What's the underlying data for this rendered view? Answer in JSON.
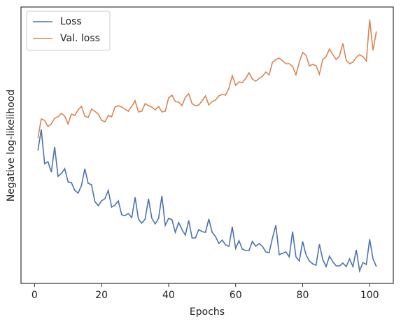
{
  "chart_data": {
    "type": "line",
    "x_label": "Epochs",
    "y_label": "Negative log-likelihood",
    "x": [
      1,
      2,
      3,
      4,
      5,
      6,
      7,
      8,
      9,
      10,
      11,
      12,
      13,
      14,
      15,
      16,
      17,
      18,
      19,
      20,
      21,
      22,
      23,
      24,
      25,
      26,
      27,
      28,
      29,
      30,
      31,
      32,
      33,
      34,
      35,
      36,
      37,
      38,
      39,
      40,
      41,
      42,
      43,
      44,
      45,
      46,
      47,
      48,
      49,
      50,
      51,
      52,
      53,
      54,
      55,
      56,
      57,
      58,
      59,
      60,
      61,
      62,
      63,
      64,
      65,
      66,
      67,
      68,
      69,
      70,
      71,
      72,
      73,
      74,
      75,
      76,
      77,
      78,
      79,
      80,
      81,
      82,
      83,
      84,
      85,
      86,
      87,
      88,
      89,
      90,
      91,
      92,
      93,
      94,
      95,
      96,
      97,
      98,
      99,
      100,
      101,
      102
    ],
    "series": [
      {
        "name": "Loss",
        "color": "#4c72b0",
        "values": [
          190,
          220,
          171,
          174,
          159,
          195,
          153,
          157,
          164,
          145,
          144,
          133,
          129,
          140,
          164,
          143,
          141,
          117,
          111,
          118,
          121,
          133,
          109,
          112,
          118,
          98,
          97,
          100,
          94,
          123,
          92,
          86,
          92,
          121,
          93,
          85,
          93,
          125,
          83,
          93,
          91,
          73,
          87,
          77,
          69,
          90,
          65,
          65,
          77,
          74,
          73,
          92,
          73,
          67,
          57,
          62,
          55,
          53,
          81,
          50,
          61,
          49,
          47,
          47,
          60,
          53,
          57,
          53,
          45,
          44,
          65,
          83,
          41,
          43,
          45,
          38,
          74,
          38,
          32,
          60,
          41,
          32,
          28,
          26,
          56,
          34,
          24,
          39,
          31,
          25,
          25,
          29,
          24,
          35,
          24,
          48,
          18,
          30,
          27,
          63,
          35,
          24
        ]
      },
      {
        "name": "Val. loss",
        "color": "#dd8452",
        "values": [
          208,
          235,
          233,
          224,
          228,
          236,
          238,
          243,
          239,
          228,
          242,
          240,
          248,
          253,
          239,
          237,
          249,
          246,
          242,
          233,
          231,
          240,
          238,
          252,
          254,
          252,
          249,
          246,
          253,
          261,
          245,
          246,
          257,
          254,
          252,
          248,
          253,
          245,
          246,
          265,
          269,
          260,
          259,
          254,
          266,
          271,
          257,
          254,
          255,
          261,
          268,
          255,
          260,
          262,
          268,
          270,
          269,
          279,
          297,
          283,
          288,
          287,
          293,
          301,
          292,
          289,
          293,
          296,
          302,
          298,
          316,
          320,
          322,
          318,
          314,
          314,
          310,
          298,
          316,
          330,
          326,
          311,
          313,
          311,
          299,
          320,
          324,
          335,
          327,
          320,
          325,
          343,
          319,
          314,
          316,
          323,
          327,
          324,
          318,
          377,
          333,
          360
        ]
      }
    ],
    "xlim": [
      -4.05,
      107.05
    ],
    "xticks": [
      0,
      20,
      40,
      60,
      80,
      100
    ],
    "ylim": [
      0,
      395
    ],
    "legend": "upper left"
  }
}
